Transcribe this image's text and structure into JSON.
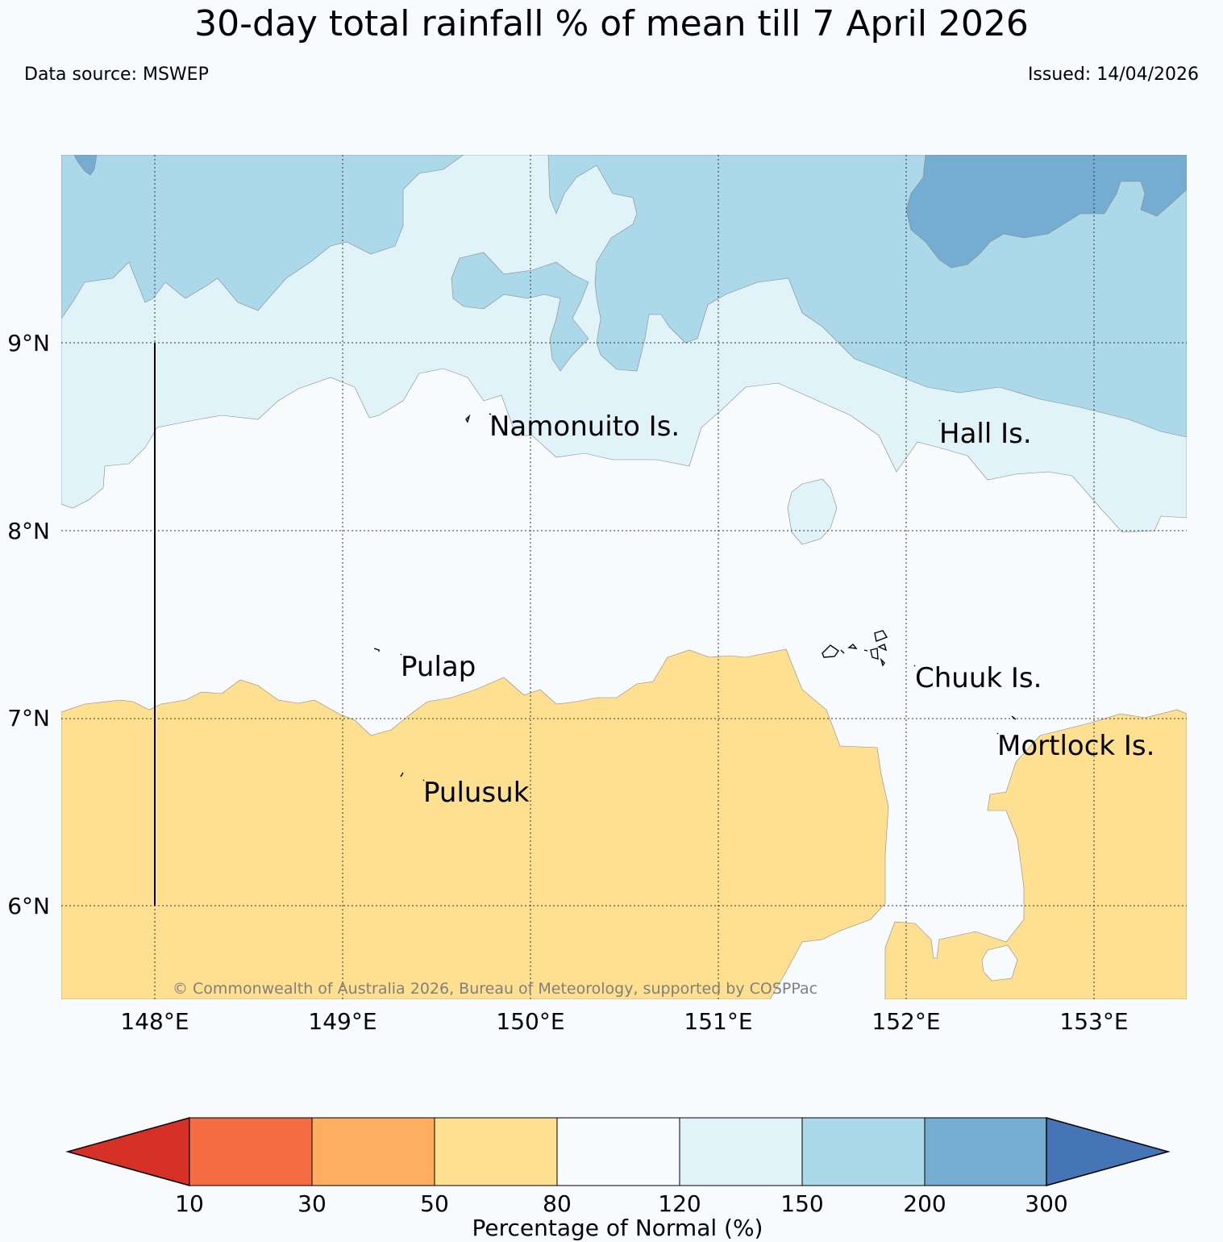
{
  "title": "30-day total rainfall % of mean till 7 April 2026",
  "data_source": "Data source: MSWEP",
  "issued": "Issued: 14/04/2026",
  "copyright": "© Commonwealth of Australia 2026, Bureau of Meteorology, supported by COSPPac",
  "map": {
    "lon_range": [
      147.5,
      153.5
    ],
    "lat_range": [
      5.5,
      10.0
    ],
    "lon_ticks": [
      "148°E",
      "149°E",
      "150°E",
      "151°E",
      "152°E",
      "153°E"
    ],
    "lat_ticks": [
      "9°N",
      "8°N",
      "7°N",
      "6°N"
    ],
    "places": [
      {
        "name": "Namonuito Is."
      },
      {
        "name": "Hall Is."
      },
      {
        "name": "Pulap"
      },
      {
        "name": "Chuuk Is."
      },
      {
        "name": "Mortlock Is."
      },
      {
        "name": "Pulusuk"
      }
    ]
  },
  "colorbar": {
    "label": "Percentage of Normal (%)",
    "boundaries": [
      "10",
      "30",
      "50",
      "80",
      "120",
      "150",
      "200",
      "300"
    ],
    "colors": [
      "#d73027",
      "#f46d43",
      "#fdae61",
      "#fee090",
      "#f7fbfd",
      "#e0f3f8",
      "#abd9e9",
      "#74add1",
      "#4575b4"
    ]
  }
}
